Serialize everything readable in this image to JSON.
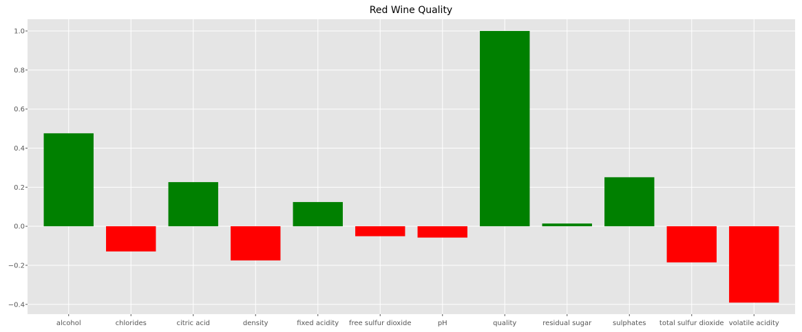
{
  "chart_data": {
    "type": "bar",
    "title": "Red Wine Quality",
    "xlabel": "",
    "ylabel": "",
    "categories": [
      "alcohol",
      "chlorides",
      "citric acid",
      "density",
      "fixed acidity",
      "free sulfur dioxide",
      "pH",
      "quality",
      "residual sugar",
      "sulphates",
      "total sulfur dioxide",
      "volatile acidity"
    ],
    "values": [
      0.476,
      -0.129,
      0.226,
      -0.175,
      0.124,
      -0.051,
      -0.058,
      1.0,
      0.014,
      0.251,
      -0.185,
      -0.391
    ],
    "ylim": [
      -0.45,
      1.06
    ],
    "yticks": [
      -0.4,
      -0.2,
      0.0,
      0.2,
      0.4,
      0.6,
      0.8,
      1.0
    ],
    "ytick_labels": [
      "−0.4",
      "−0.2",
      "0.0",
      "0.2",
      "0.4",
      "0.6",
      "0.8",
      "1.0"
    ],
    "grid": true,
    "colors": {
      "positive": "#008000",
      "negative": "#ff0000",
      "plot_background": "#e5e5e5",
      "grid": "#ffffff"
    }
  }
}
